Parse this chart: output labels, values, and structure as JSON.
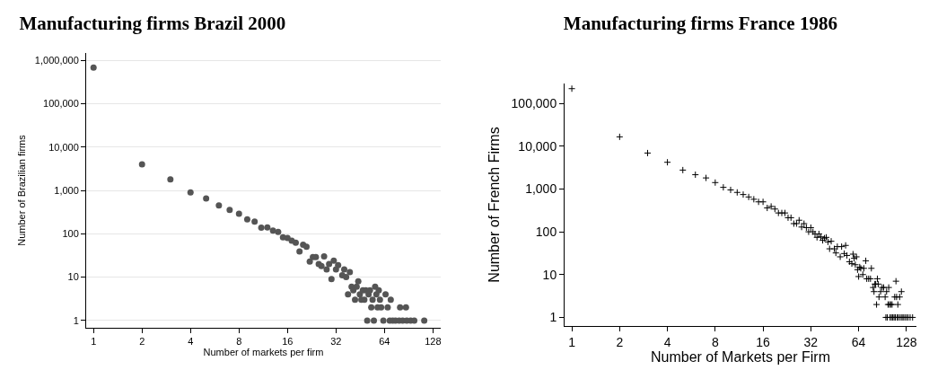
{
  "chart_data": [
    {
      "type": "scatter",
      "title": "Manufacturing firms Brazil 2000",
      "xlabel": "Number of markets per firm",
      "ylabel": "Number of Brazilian firms",
      "log": "xy",
      "grid": "y",
      "marker": "circle",
      "color": "#555555",
      "xlim": [
        0.9,
        143
      ],
      "ylim": [
        0.68,
        1470000
      ],
      "xticks": [
        1,
        2,
        4,
        8,
        16,
        32,
        64,
        128
      ],
      "yticks": [
        1,
        10,
        100,
        {
          "value": 1000,
          "label": "1,000"
        },
        {
          "value": 10000,
          "label": "10,000"
        },
        {
          "value": 100000,
          "label": "100,000"
        },
        {
          "value": 1000000,
          "label": "1,000,000"
        }
      ],
      "x": [
        1,
        2,
        3,
        4,
        5,
        6,
        7,
        8,
        9,
        10,
        11,
        12,
        13,
        14,
        15,
        16,
        17,
        18,
        19,
        20,
        21,
        22,
        23,
        24,
        25,
        26,
        27,
        28,
        29,
        30,
        31,
        32,
        33,
        35,
        36,
        37,
        38,
        39,
        40,
        41,
        42,
        43,
        44,
        45,
        46,
        47,
        48,
        49,
        50,
        51,
        52,
        53,
        54,
        55,
        56,
        57,
        58,
        59,
        60,
        61,
        63,
        65,
        67,
        69,
        70,
        72,
        75,
        79,
        80,
        83,
        87,
        88,
        93,
        98,
        113
      ],
      "values": [
        680000,
        4000,
        1800,
        900,
        650,
        450,
        355,
        290,
        215,
        190,
        138,
        140,
        118,
        110,
        83,
        80,
        69,
        62,
        39,
        56,
        50,
        23,
        29,
        29,
        20,
        18,
        30,
        15,
        20,
        9,
        24,
        15,
        19,
        11,
        15,
        10,
        4,
        13,
        6,
        5,
        3,
        6,
        8,
        4,
        3,
        5,
        3,
        5,
        1,
        4,
        5,
        2,
        3,
        1,
        6,
        4,
        2,
        5,
        3,
        2,
        1,
        4,
        2,
        1,
        3,
        1,
        1,
        1,
        2,
        1,
        2,
        1,
        1,
        1,
        1
      ]
    },
    {
      "type": "scatter",
      "title": "Manufacturing firms France 1986",
      "xlabel": "Number of Markets per Firm",
      "ylabel": "Number of French Firms",
      "log": "xy",
      "grid": false,
      "marker": "cross",
      "color": "#000000",
      "xlim": [
        0.9,
        148
      ],
      "ylim": [
        0.63,
        290000
      ],
      "xticks": [
        1,
        2,
        4,
        8,
        16,
        32,
        64,
        128
      ],
      "yticks": [
        1,
        10,
        100,
        {
          "value": 1000,
          "label": "1,000"
        },
        {
          "value": 10000,
          "label": "10,000"
        },
        {
          "value": 100000,
          "label": "100,000"
        }
      ],
      "x": [
        1,
        2,
        3,
        4,
        5,
        6,
        7,
        8,
        9,
        10,
        11,
        12,
        13,
        14,
        15,
        16,
        17,
        18,
        19,
        20,
        21,
        22,
        23,
        24,
        25,
        26,
        27,
        28,
        29,
        30,
        31,
        32,
        33,
        34,
        35,
        36,
        37,
        38,
        39,
        40,
        41,
        42,
        43,
        45,
        46,
        47,
        49,
        50,
        52,
        53,
        54,
        56,
        58,
        59,
        60,
        61,
        62,
        63,
        64,
        65,
        66,
        68,
        69,
        71,
        72,
        74,
        76,
        77,
        79,
        80,
        81,
        82,
        83,
        84,
        85,
        86,
        88,
        90,
        92,
        94,
        95,
        96,
        97,
        98,
        99,
        100,
        101,
        102,
        103,
        104,
        105,
        107,
        108,
        109,
        110,
        111,
        112,
        113,
        114,
        116,
        117,
        119,
        120,
        122,
        125,
        128,
        131,
        135,
        140
      ],
      "values": [
        220000,
        16500,
        6900,
        4200,
        2760,
        2150,
        1810,
        1410,
        1090,
        950,
        830,
        740,
        650,
        575,
        500,
        500,
        360,
        390,
        340,
        275,
        275,
        275,
        213,
        213,
        155,
        155,
        186,
        129,
        155,
        125,
        100,
        125,
        100,
        89,
        74,
        89,
        76,
        63,
        71,
        74,
        58,
        40,
        60,
        40,
        32,
        45,
        26,
        45,
        31,
        48,
        28,
        20,
        18,
        30,
        24,
        17,
        26,
        13,
        9,
        15,
        14,
        10,
        14,
        21,
        8,
        8,
        8,
        14,
        5,
        4,
        6,
        6,
        2,
        8,
        6,
        3,
        4,
        5,
        5,
        3,
        1,
        4,
        1,
        2,
        5,
        2,
        1,
        2,
        1,
        2,
        1,
        1,
        3,
        1,
        7,
        3,
        1,
        2,
        1,
        3,
        1,
        4,
        1,
        1,
        1,
        1,
        1,
        1,
        1
      ]
    }
  ]
}
